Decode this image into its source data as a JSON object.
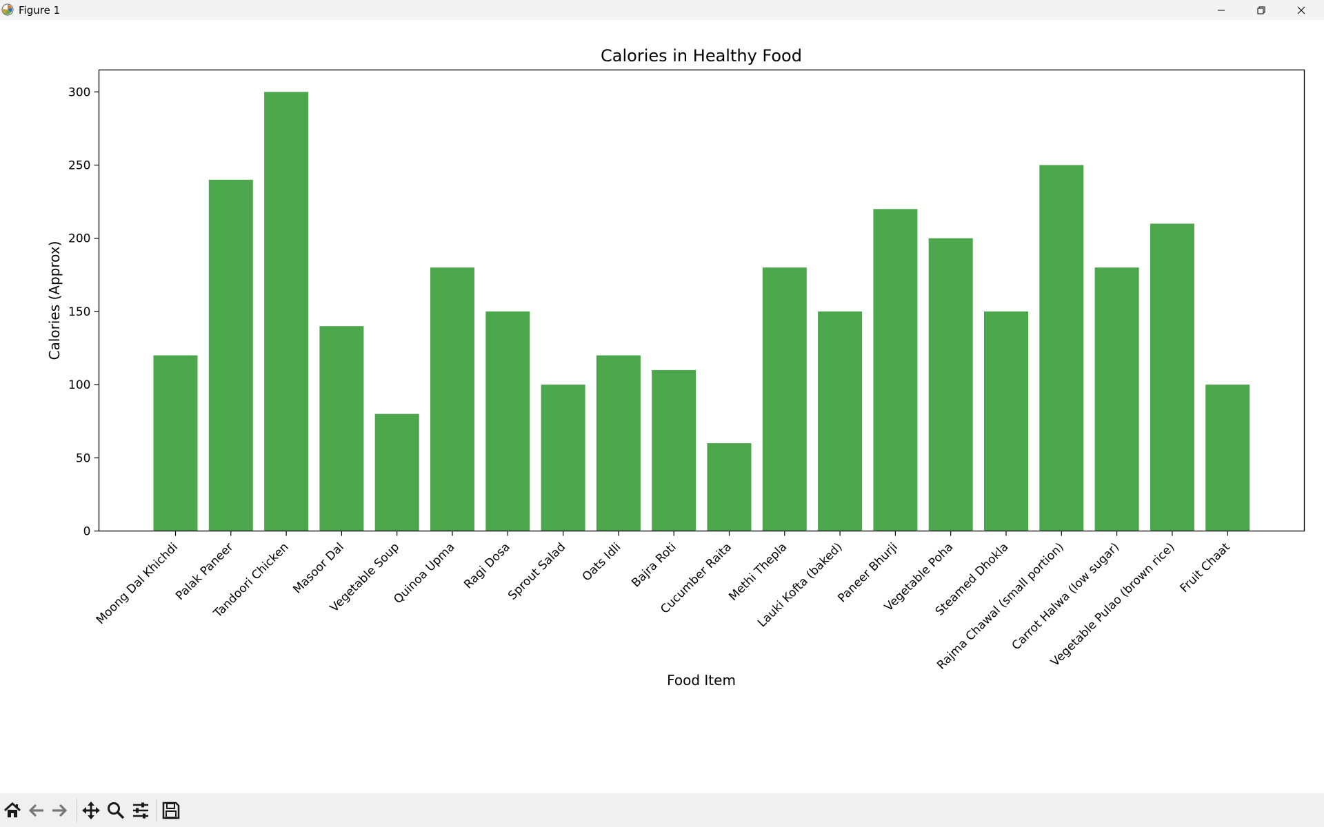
{
  "window": {
    "title": "Figure 1"
  },
  "toolbar": {
    "tools": [
      "home-icon",
      "back-icon",
      "forward-icon",
      "pan-icon",
      "zoom-icon",
      "configure-icon",
      "save-icon"
    ]
  },
  "colors": {
    "bar": "#4ca64c",
    "axis": "#000000"
  },
  "chart_data": {
    "type": "bar",
    "title": "Calories in Healthy Food",
    "xlabel": "Food Item",
    "ylabel": "Calories (Approx)",
    "ylim": [
      0,
      315
    ],
    "yticks": [
      0,
      50,
      100,
      150,
      200,
      250,
      300
    ],
    "grid": false,
    "categories": [
      "Moong Dal Khichdi",
      "Palak Paneer",
      "Tandoori Chicken",
      "Masoor Dal",
      "Vegetable Soup",
      "Quinoa Upma",
      "Ragi Dosa",
      "Sprout Salad",
      "Oats Idli",
      "Bajra Roti",
      "Cucumber Raita",
      "Methi Thepla",
      "Lauki Kofta (baked)",
      "Paneer Bhurji",
      "Vegetable Poha",
      "Steamed Dhokla",
      "Rajma Chawal (small portion)",
      "Carrot Halwa (low sugar)",
      "Vegetable Pulao (brown rice)",
      "Fruit Chaat"
    ],
    "values": [
      120,
      240,
      300,
      140,
      80,
      180,
      150,
      100,
      120,
      110,
      60,
      180,
      150,
      220,
      200,
      150,
      250,
      180,
      210,
      100
    ]
  }
}
